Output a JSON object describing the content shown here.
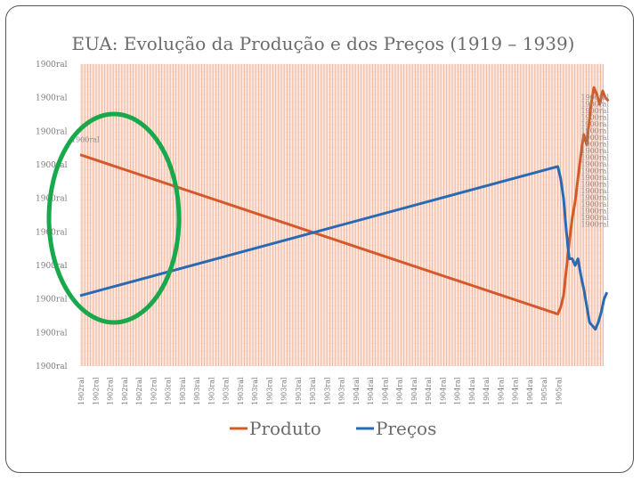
{
  "chart_data": {
    "type": "line",
    "title": "EUA: Evolução da Produção e dos Preços (1919 – 1939)",
    "xlabel": "",
    "ylabel": "",
    "y_tick_labels": [
      "1900ral",
      "1900ral",
      "1900ral",
      "1900ral",
      "1900ral",
      "1900ral",
      "1900ral",
      "1900ral",
      "1900ral",
      "1900ral"
    ],
    "x_tick_labels": [
      "1902ral",
      "1902ral",
      "1902ral",
      "1902ral",
      "1902ral",
      "1902ral",
      "1903ral",
      "1903ral",
      "1903ral",
      "1903ral",
      "1903ral",
      "1903ral",
      "1903ral",
      "1903ral",
      "1903ral",
      "1903ral",
      "1903ral",
      "1903ral",
      "1903ral",
      "1904ral",
      "1904ral",
      "1904ral",
      "1904ral",
      "1904ral",
      "1904ral",
      "1904ral",
      "1904ral",
      "1904ral",
      "1904ral",
      "1904ral",
      "1904ral",
      "1904ral",
      "1905ral",
      "1905ral"
    ],
    "data_labels": {
      "start": "1900ral",
      "end_cluster": [
        "1900ral",
        "1900ral",
        "1900ral",
        "1900ral",
        "1900ral",
        "1900ral",
        "1900ral",
        "1900ral",
        "1900ral",
        "1900ral",
        "1900ral",
        "1900ral",
        "1900ral",
        "1900ral",
        "1900ral",
        "1900ral",
        "1900ral",
        "1900ral",
        "1900ral",
        "1900ral"
      ]
    },
    "ylim": [
      0,
      9
    ],
    "series": [
      {
        "name": "Produto",
        "color": "#d35a2a",
        "points": [
          [
            0,
            6.3
          ],
          [
            33,
            1.55
          ],
          [
            33.2,
            1.75
          ],
          [
            33.4,
            2.1
          ],
          [
            33.6,
            2.9
          ],
          [
            33.8,
            3.7
          ],
          [
            34.0,
            4.4
          ],
          [
            34.2,
            4.9
          ],
          [
            34.4,
            5.6
          ],
          [
            34.6,
            6.3
          ],
          [
            34.8,
            6.9
          ],
          [
            35.0,
            6.6
          ],
          [
            35.3,
            7.8
          ],
          [
            35.5,
            8.3
          ],
          [
            35.7,
            8.1
          ],
          [
            35.9,
            7.8
          ],
          [
            36.1,
            8.2
          ],
          [
            36.3,
            8.0
          ],
          [
            36.5,
            7.9
          ]
        ]
      },
      {
        "name": "Preços",
        "color": "#2a6ab3",
        "points": [
          [
            0,
            2.1
          ],
          [
            33,
            5.95
          ],
          [
            33.2,
            5.6
          ],
          [
            33.4,
            5.0
          ],
          [
            33.6,
            4.0
          ],
          [
            33.8,
            3.2
          ],
          [
            34.0,
            3.2
          ],
          [
            34.2,
            3.0
          ],
          [
            34.4,
            3.2
          ],
          [
            34.6,
            2.7
          ],
          [
            34.8,
            2.3
          ],
          [
            35.0,
            1.8
          ],
          [
            35.2,
            1.3
          ],
          [
            35.4,
            1.2
          ],
          [
            35.6,
            1.1
          ],
          [
            35.8,
            1.3
          ],
          [
            36.0,
            1.6
          ],
          [
            36.2,
            2.0
          ],
          [
            36.4,
            2.2
          ]
        ]
      }
    ],
    "annotation": {
      "shape": "ellipse",
      "color": "#1aa84c",
      "note": "green circle highlighting start of series"
    }
  }
}
